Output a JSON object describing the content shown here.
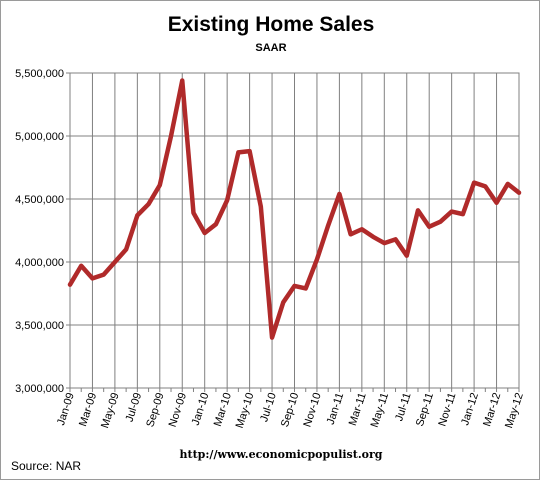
{
  "chart_data": {
    "type": "line",
    "title": "Existing Home Sales",
    "subtitle": "SAAR",
    "source_note": "Source:  NAR",
    "credit": "http://www.economicpopulist.org",
    "xlabel": "",
    "ylabel": "",
    "ylim": [
      3000000,
      5500000
    ],
    "yticks": [
      {
        "value": 3000000,
        "label": "3,000,000"
      },
      {
        "value": 3500000,
        "label": "3,500,000"
      },
      {
        "value": 4000000,
        "label": "4,000,000"
      },
      {
        "value": 4500000,
        "label": "4,500,000"
      },
      {
        "value": 5000000,
        "label": "5,000,000"
      },
      {
        "value": 5500000,
        "label": "5,500,000"
      }
    ],
    "grid": true,
    "line_color": "#b02a2a",
    "x": [
      "Jan-09",
      "Feb-09",
      "Mar-09",
      "Apr-09",
      "May-09",
      "Jun-09",
      "Jul-09",
      "Aug-09",
      "Sep-09",
      "Oct-09",
      "Nov-09",
      "Dec-09",
      "Jan-10",
      "Feb-10",
      "Mar-10",
      "Apr-10",
      "May-10",
      "Jun-10",
      "Jul-10",
      "Aug-10",
      "Sep-10",
      "Oct-10",
      "Nov-10",
      "Dec-10",
      "Jan-11",
      "Feb-11",
      "Mar-11",
      "Apr-11",
      "May-11",
      "Jun-11",
      "Jul-11",
      "Aug-11",
      "Sep-11",
      "Oct-11",
      "Nov-11",
      "Dec-11",
      "Jan-12",
      "Feb-12",
      "Mar-12",
      "Apr-12",
      "May-12"
    ],
    "xtick_labels": [
      "Jan-09",
      "",
      "Mar-09",
      "",
      "May-09",
      "",
      "Jul-09",
      "",
      "Sep-09",
      "",
      "Nov-09",
      "",
      "Jan-10",
      "",
      "Mar-10",
      "",
      "May-10",
      "",
      "Jul-10",
      "",
      "Sep-10",
      "",
      "Nov-10",
      "",
      "Jan-11",
      "",
      "Mar-11",
      "",
      "May-11",
      "",
      "Jul-11",
      "",
      "Sep-11",
      "",
      "Nov-11",
      "",
      "Jan-12",
      "",
      "Mar-12",
      "",
      "May-12"
    ],
    "series": [
      {
        "values": [
          3820000,
          3970000,
          3870000,
          3900000,
          4000000,
          4100000,
          4370000,
          4460000,
          4610000,
          5000000,
          5440000,
          4390000,
          4230000,
          4300000,
          4490000,
          4870000,
          4880000,
          4440000,
          3400000,
          3680000,
          3810000,
          3790000,
          4020000,
          4290000,
          4540000,
          4220000,
          4260000,
          4200000,
          4150000,
          4180000,
          4050000,
          4410000,
          4280000,
          4320000,
          4400000,
          4380000,
          4630000,
          4600000,
          4470000,
          4620000,
          4550000
        ]
      }
    ]
  }
}
